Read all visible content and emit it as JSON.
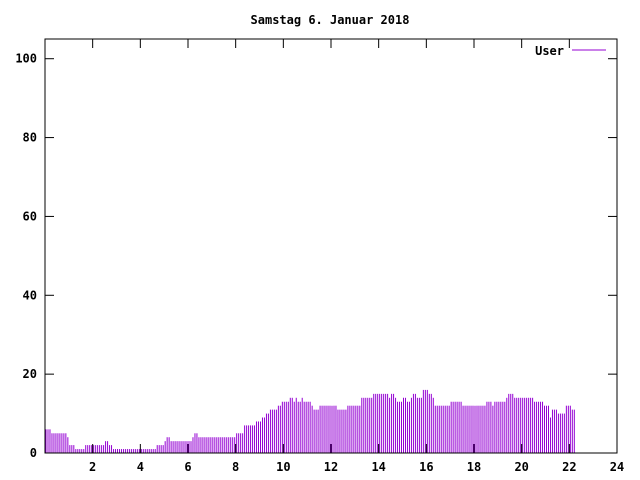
{
  "chart_data": {
    "type": "bar",
    "title": "Samstag 6. Januar 2018",
    "xlabel": "",
    "ylabel": "",
    "xlim": [
      0,
      24
    ],
    "ylim": [
      0,
      105
    ],
    "xticks": [
      2,
      4,
      6,
      8,
      10,
      12,
      14,
      16,
      18,
      20,
      22,
      24
    ],
    "yticks": [
      0,
      20,
      40,
      60,
      80,
      100
    ],
    "grid": false,
    "legend_position": "top-right",
    "series": [
      {
        "name": "User",
        "color": "#9400d3",
        "x_start": 0,
        "x_step_minutes": 5,
        "values": [
          6,
          6,
          6,
          5,
          5,
          5,
          5,
          5,
          5,
          5,
          5,
          4,
          2,
          2,
          2,
          1,
          1,
          1,
          1,
          1,
          2,
          2,
          2,
          2,
          2,
          2,
          2,
          2,
          2,
          2,
          3,
          3,
          2,
          2,
          1,
          1,
          1,
          1,
          1,
          1,
          1,
          1,
          1,
          1,
          1,
          1,
          1,
          1,
          1,
          1,
          1,
          1,
          1,
          1,
          1,
          1,
          2,
          2,
          2,
          2,
          3,
          4,
          4,
          3,
          3,
          3,
          3,
          3,
          3,
          3,
          3,
          3,
          3,
          3,
          4,
          5,
          5,
          4,
          4,
          4,
          4,
          4,
          4,
          4,
          4,
          4,
          4,
          4,
          4,
          4,
          4,
          4,
          4,
          4,
          4,
          4,
          5,
          5,
          5,
          5,
          7,
          7,
          7,
          7,
          7,
          7,
          8,
          8,
          8,
          9,
          9,
          10,
          10,
          11,
          11,
          11,
          11,
          12,
          12,
          13,
          13,
          13,
          13,
          14,
          14,
          13,
          14,
          13,
          13,
          14,
          13,
          13,
          13,
          13,
          12,
          11,
          11,
          11,
          12,
          12,
          12,
          12,
          12,
          12,
          12,
          12,
          12,
          11,
          11,
          11,
          11,
          11,
          12,
          12,
          12,
          12,
          12,
          12,
          12,
          14,
          14,
          14,
          14,
          14,
          14,
          15,
          15,
          15,
          15,
          15,
          15,
          15,
          15,
          14,
          15,
          15,
          14,
          13,
          13,
          13,
          14,
          14,
          13,
          13,
          14,
          15,
          15,
          14,
          14,
          14,
          16,
          16,
          16,
          15,
          15,
          14,
          12,
          12,
          12,
          12,
          12,
          12,
          12,
          12,
          13,
          13,
          13,
          13,
          13,
          13,
          12,
          12,
          12,
          12,
          12,
          12,
          12,
          12,
          12,
          12,
          12,
          12,
          13,
          13,
          13,
          12,
          13,
          13,
          13,
          13,
          13,
          13,
          14,
          15,
          15,
          15,
          14,
          14,
          14,
          14,
          14,
          14,
          14,
          14,
          14,
          14,
          13,
          13,
          13,
          13,
          13,
          12,
          12,
          12,
          9,
          11,
          11,
          11,
          10,
          10,
          10,
          10,
          12,
          12,
          12,
          11,
          11
        ]
      }
    ]
  }
}
